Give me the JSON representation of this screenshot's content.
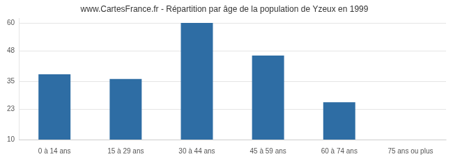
{
  "chart_data": {
    "type": "bar",
    "title": "www.CartesFrance.fr - Répartition par âge de la population de Yzeux en 1999",
    "categories": [
      "0 à 14 ans",
      "15 à 29 ans",
      "30 à 44 ans",
      "45 à 59 ans",
      "60 à 74 ans",
      "75 ans ou plus"
    ],
    "values": [
      38,
      36,
      60,
      46,
      26,
      10
    ],
    "color": "#2e6da4",
    "ylim": [
      10,
      62
    ],
    "yticks": [
      10,
      23,
      35,
      48,
      60
    ],
    "grid": true
  }
}
